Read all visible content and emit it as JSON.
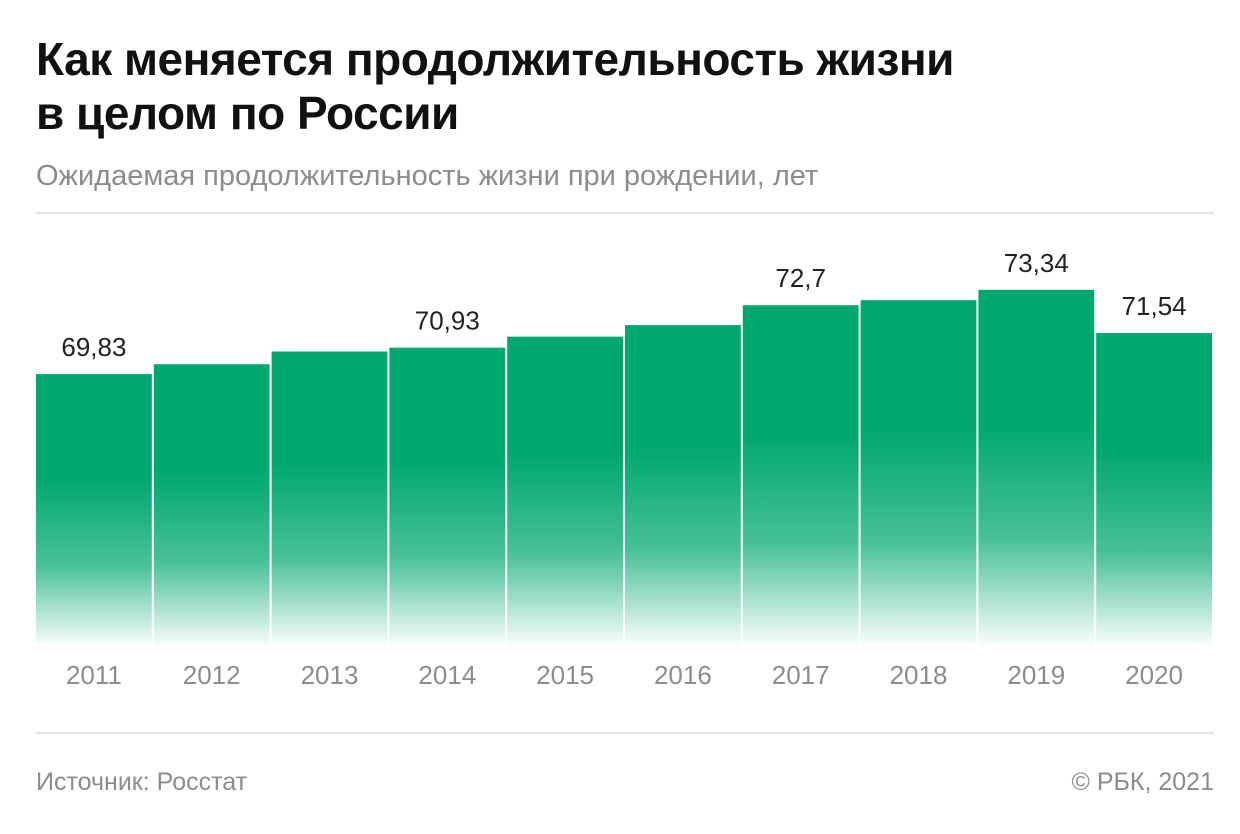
{
  "header": {
    "title_line1": "Как меняется продолжительность жизни",
    "title_line2": "в целом по России",
    "subtitle": "Ожидаемая продолжительность жизни при рождении, лет"
  },
  "footer": {
    "source": "Источник: Росстат",
    "copyright": "© РБК, 2021"
  },
  "colors": {
    "bar": "#00a870",
    "axis_text": "#8c8c8c",
    "label_text": "#222222"
  },
  "chart_data": {
    "type": "bar",
    "title": "Как меняется продолжительность жизни в целом по России",
    "subtitle": "Ожидаемая продолжительность жизни при рождении, лет",
    "xlabel": "",
    "ylabel": "лет",
    "categories": [
      "2011",
      "2012",
      "2013",
      "2014",
      "2015",
      "2016",
      "2017",
      "2018",
      "2019",
      "2020"
    ],
    "values": [
      69.83,
      70.24,
      70.77,
      70.93,
      71.39,
      71.87,
      72.7,
      72.91,
      73.34,
      71.54
    ],
    "data_labels": [
      "69,83",
      "",
      "",
      "70,93",
      "",
      "",
      "72,7",
      "",
      "73,34",
      "71,54"
    ],
    "ylim": [
      58.5,
      76.5
    ],
    "grid": false,
    "legend": "none"
  }
}
